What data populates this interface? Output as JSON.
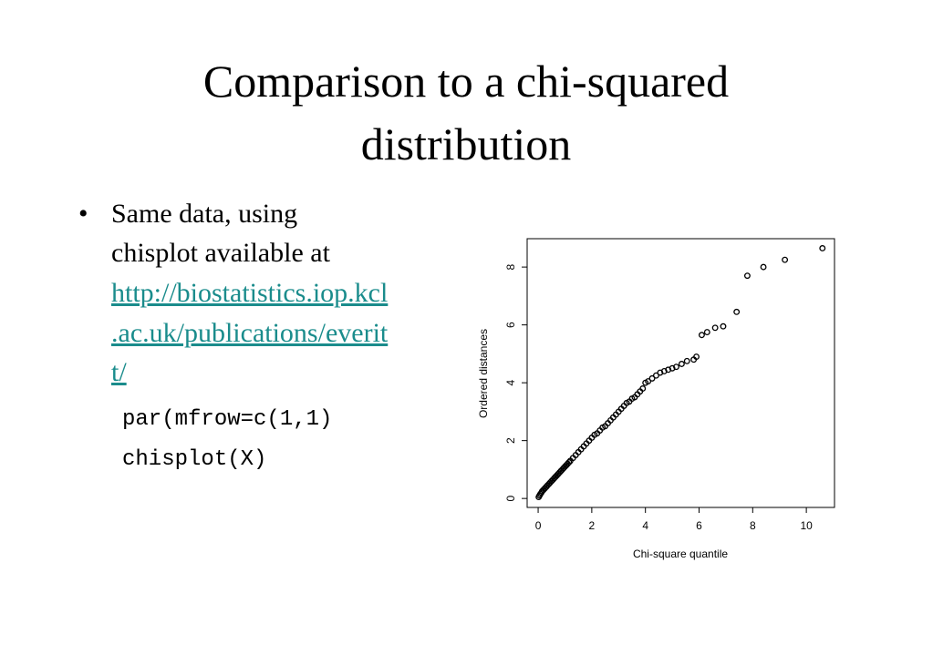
{
  "title": [
    "Comparison to a chi-squared",
    "distribution"
  ],
  "bullet": {
    "lines": [
      "Same data, using",
      "chisplot available at"
    ],
    "link": [
      "http://biostatistics.iop.kcl",
      ".ac.uk/publications/everit",
      "t/"
    ]
  },
  "code": [
    "par(mfrow=c(1,1)",
    "chisplot(X)"
  ],
  "chart_data": {
    "type": "scatter",
    "xlabel": "Chi-square quantile",
    "ylabel": "Ordered distances",
    "xlim": [
      -0.41,
      11.05
    ],
    "ylim": [
      -0.31,
      8.98
    ],
    "xticks": [
      0,
      2,
      4,
      6,
      8,
      10
    ],
    "yticks": [
      0,
      2,
      4,
      6,
      8
    ],
    "color": "#000000",
    "x": [
      0.02,
      0.05,
      0.08,
      0.12,
      0.15,
      0.2,
      0.25,
      0.3,
      0.35,
      0.4,
      0.45,
      0.5,
      0.55,
      0.6,
      0.65,
      0.7,
      0.75,
      0.8,
      0.85,
      0.9,
      0.95,
      1.0,
      1.05,
      1.1,
      1.15,
      1.2,
      1.3,
      1.4,
      1.5,
      1.6,
      1.7,
      1.8,
      1.9,
      2.0,
      2.1,
      2.2,
      2.3,
      2.4,
      2.5,
      2.6,
      2.7,
      2.8,
      2.9,
      3.0,
      3.1,
      3.2,
      3.3,
      3.4,
      3.5,
      3.6,
      3.7,
      3.8,
      3.9,
      4.0,
      4.1,
      4.25,
      4.4,
      4.55,
      4.7,
      4.85,
      5.0,
      5.15,
      5.35,
      5.55,
      5.8,
      5.9,
      6.1,
      6.3,
      6.6,
      6.9,
      7.4,
      7.8,
      8.4,
      9.2,
      10.6
    ],
    "values": [
      0.05,
      0.1,
      0.15,
      0.2,
      0.25,
      0.3,
      0.35,
      0.4,
      0.45,
      0.5,
      0.55,
      0.6,
      0.65,
      0.7,
      0.75,
      0.8,
      0.85,
      0.9,
      0.95,
      1.0,
      1.05,
      1.1,
      1.15,
      1.2,
      1.25,
      1.3,
      1.4,
      1.5,
      1.6,
      1.7,
      1.8,
      1.9,
      2.0,
      2.1,
      2.2,
      2.25,
      2.35,
      2.45,
      2.5,
      2.6,
      2.7,
      2.8,
      2.9,
      3.0,
      3.1,
      3.2,
      3.3,
      3.35,
      3.45,
      3.5,
      3.6,
      3.7,
      3.8,
      4.0,
      4.05,
      4.15,
      4.25,
      4.35,
      4.4,
      4.45,
      4.5,
      4.55,
      4.65,
      4.75,
      4.8,
      4.9,
      5.65,
      5.75,
      5.9,
      5.95,
      6.45,
      7.7,
      8.0,
      8.25,
      8.65
    ]
  }
}
